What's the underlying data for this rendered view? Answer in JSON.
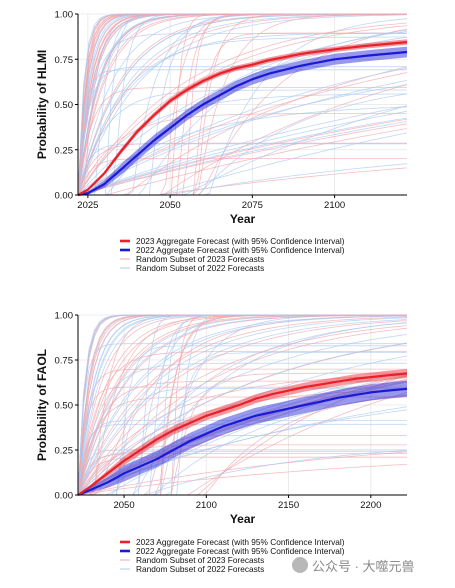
{
  "chart_data": [
    {
      "type": "line",
      "title": "",
      "xlabel": "Year",
      "ylabel": "Probability of HLMI",
      "xlim": [
        2022,
        2122
      ],
      "ylim": [
        0,
        1
      ],
      "xticks": [
        "2025",
        "2050",
        "2075",
        "2100"
      ],
      "yticks": [
        "0.00",
        "0.25",
        "0.50",
        "0.75",
        "1.00"
      ],
      "grid": true,
      "legend_position": "bottom",
      "series": [
        {
          "name": "2023 Aggregate Forecast (with 95% Confidence Interval)",
          "color": "#e8202a",
          "x": [
            2022,
            2025,
            2030,
            2035,
            2040,
            2045,
            2050,
            2055,
            2060,
            2065,
            2070,
            2075,
            2080,
            2090,
            2100,
            2110,
            2122
          ],
          "y": [
            0.0,
            0.03,
            0.12,
            0.24,
            0.35,
            0.44,
            0.52,
            0.58,
            0.63,
            0.67,
            0.7,
            0.72,
            0.745,
            0.78,
            0.805,
            0.825,
            0.845
          ],
          "ci_halfwidth": 0.015
        },
        {
          "name": "2022 Aggregate Forecast (with 95% Confidence Interval)",
          "color": "#1a1ad6",
          "x": [
            2022,
            2025,
            2030,
            2035,
            2040,
            2045,
            2050,
            2055,
            2060,
            2065,
            2070,
            2075,
            2080,
            2090,
            2100,
            2110,
            2122
          ],
          "y": [
            0.0,
            0.01,
            0.06,
            0.14,
            0.22,
            0.3,
            0.37,
            0.44,
            0.5,
            0.55,
            0.6,
            0.64,
            0.67,
            0.715,
            0.75,
            0.77,
            0.79
          ],
          "ci_halfwidth": 0.03
        }
      ],
      "legend": [
        {
          "label": "2023 Aggregate Forecast (with 95% Confidence Interval)",
          "color": "#e8202a",
          "style": "bold"
        },
        {
          "label": "2022 Aggregate Forecast (with 95% Confidence Interval)",
          "color": "#1a1ad6",
          "style": "bold"
        },
        {
          "label": "Random Subset of 2023 Forecasts",
          "color": "#f5b5b8",
          "style": "thin"
        },
        {
          "label": "Random Subset of 2022 Forecasts",
          "color": "#b9d3f3",
          "style": "thin"
        }
      ]
    },
    {
      "type": "line",
      "title": "",
      "xlabel": "Year",
      "ylabel": "Probability of FAOL",
      "xlim": [
        2022,
        2222
      ],
      "ylim": [
        0,
        1
      ],
      "xticks": [
        "2050",
        "2100",
        "2150",
        "2200"
      ],
      "yticks": [
        "0.00",
        "0.25",
        "0.50",
        "0.75",
        "1.00"
      ],
      "grid": true,
      "legend_position": "bottom",
      "series": [
        {
          "name": "2023 Aggregate Forecast (with 95% Confidence Interval)",
          "color": "#e8202a",
          "x": [
            2022,
            2030,
            2040,
            2050,
            2060,
            2070,
            2080,
            2090,
            2100,
            2110,
            2120,
            2130,
            2140,
            2150,
            2160,
            2170,
            2180,
            2190,
            2200,
            2210,
            2222
          ],
          "y": [
            0.0,
            0.05,
            0.12,
            0.19,
            0.25,
            0.31,
            0.36,
            0.4,
            0.44,
            0.47,
            0.5,
            0.535,
            0.56,
            0.58,
            0.6,
            0.615,
            0.63,
            0.645,
            0.655,
            0.665,
            0.675
          ],
          "ci_halfwidth": 0.025
        },
        {
          "name": "2022 Aggregate Forecast (with 95% Confidence Interval)",
          "color": "#1a1ad6",
          "x": [
            2022,
            2030,
            2040,
            2050,
            2060,
            2070,
            2080,
            2090,
            2100,
            2110,
            2120,
            2130,
            2140,
            2150,
            2160,
            2170,
            2180,
            2190,
            2200,
            2210,
            2222
          ],
          "y": [
            0.0,
            0.03,
            0.07,
            0.12,
            0.16,
            0.2,
            0.25,
            0.3,
            0.34,
            0.38,
            0.41,
            0.44,
            0.46,
            0.48,
            0.5,
            0.52,
            0.54,
            0.555,
            0.57,
            0.58,
            0.59
          ],
          "ci_halfwidth": 0.045
        }
      ],
      "legend": [
        {
          "label": "2023 Aggregate Forecast (with 95% Confidence Interval)",
          "color": "#e8202a",
          "style": "bold"
        },
        {
          "label": "2022 Aggregate Forecast (with 95% Confidence Interval)",
          "color": "#1a1ad6",
          "style": "bold"
        },
        {
          "label": "Random Subset of 2023 Forecasts",
          "color": "#f5b5b8",
          "style": "thin"
        },
        {
          "label": "Random Subset of 2022 Forecasts",
          "color": "#b9d3f3",
          "style": "thin"
        }
      ]
    }
  ],
  "watermark": {
    "text": "公众号 · 大噬元兽"
  }
}
